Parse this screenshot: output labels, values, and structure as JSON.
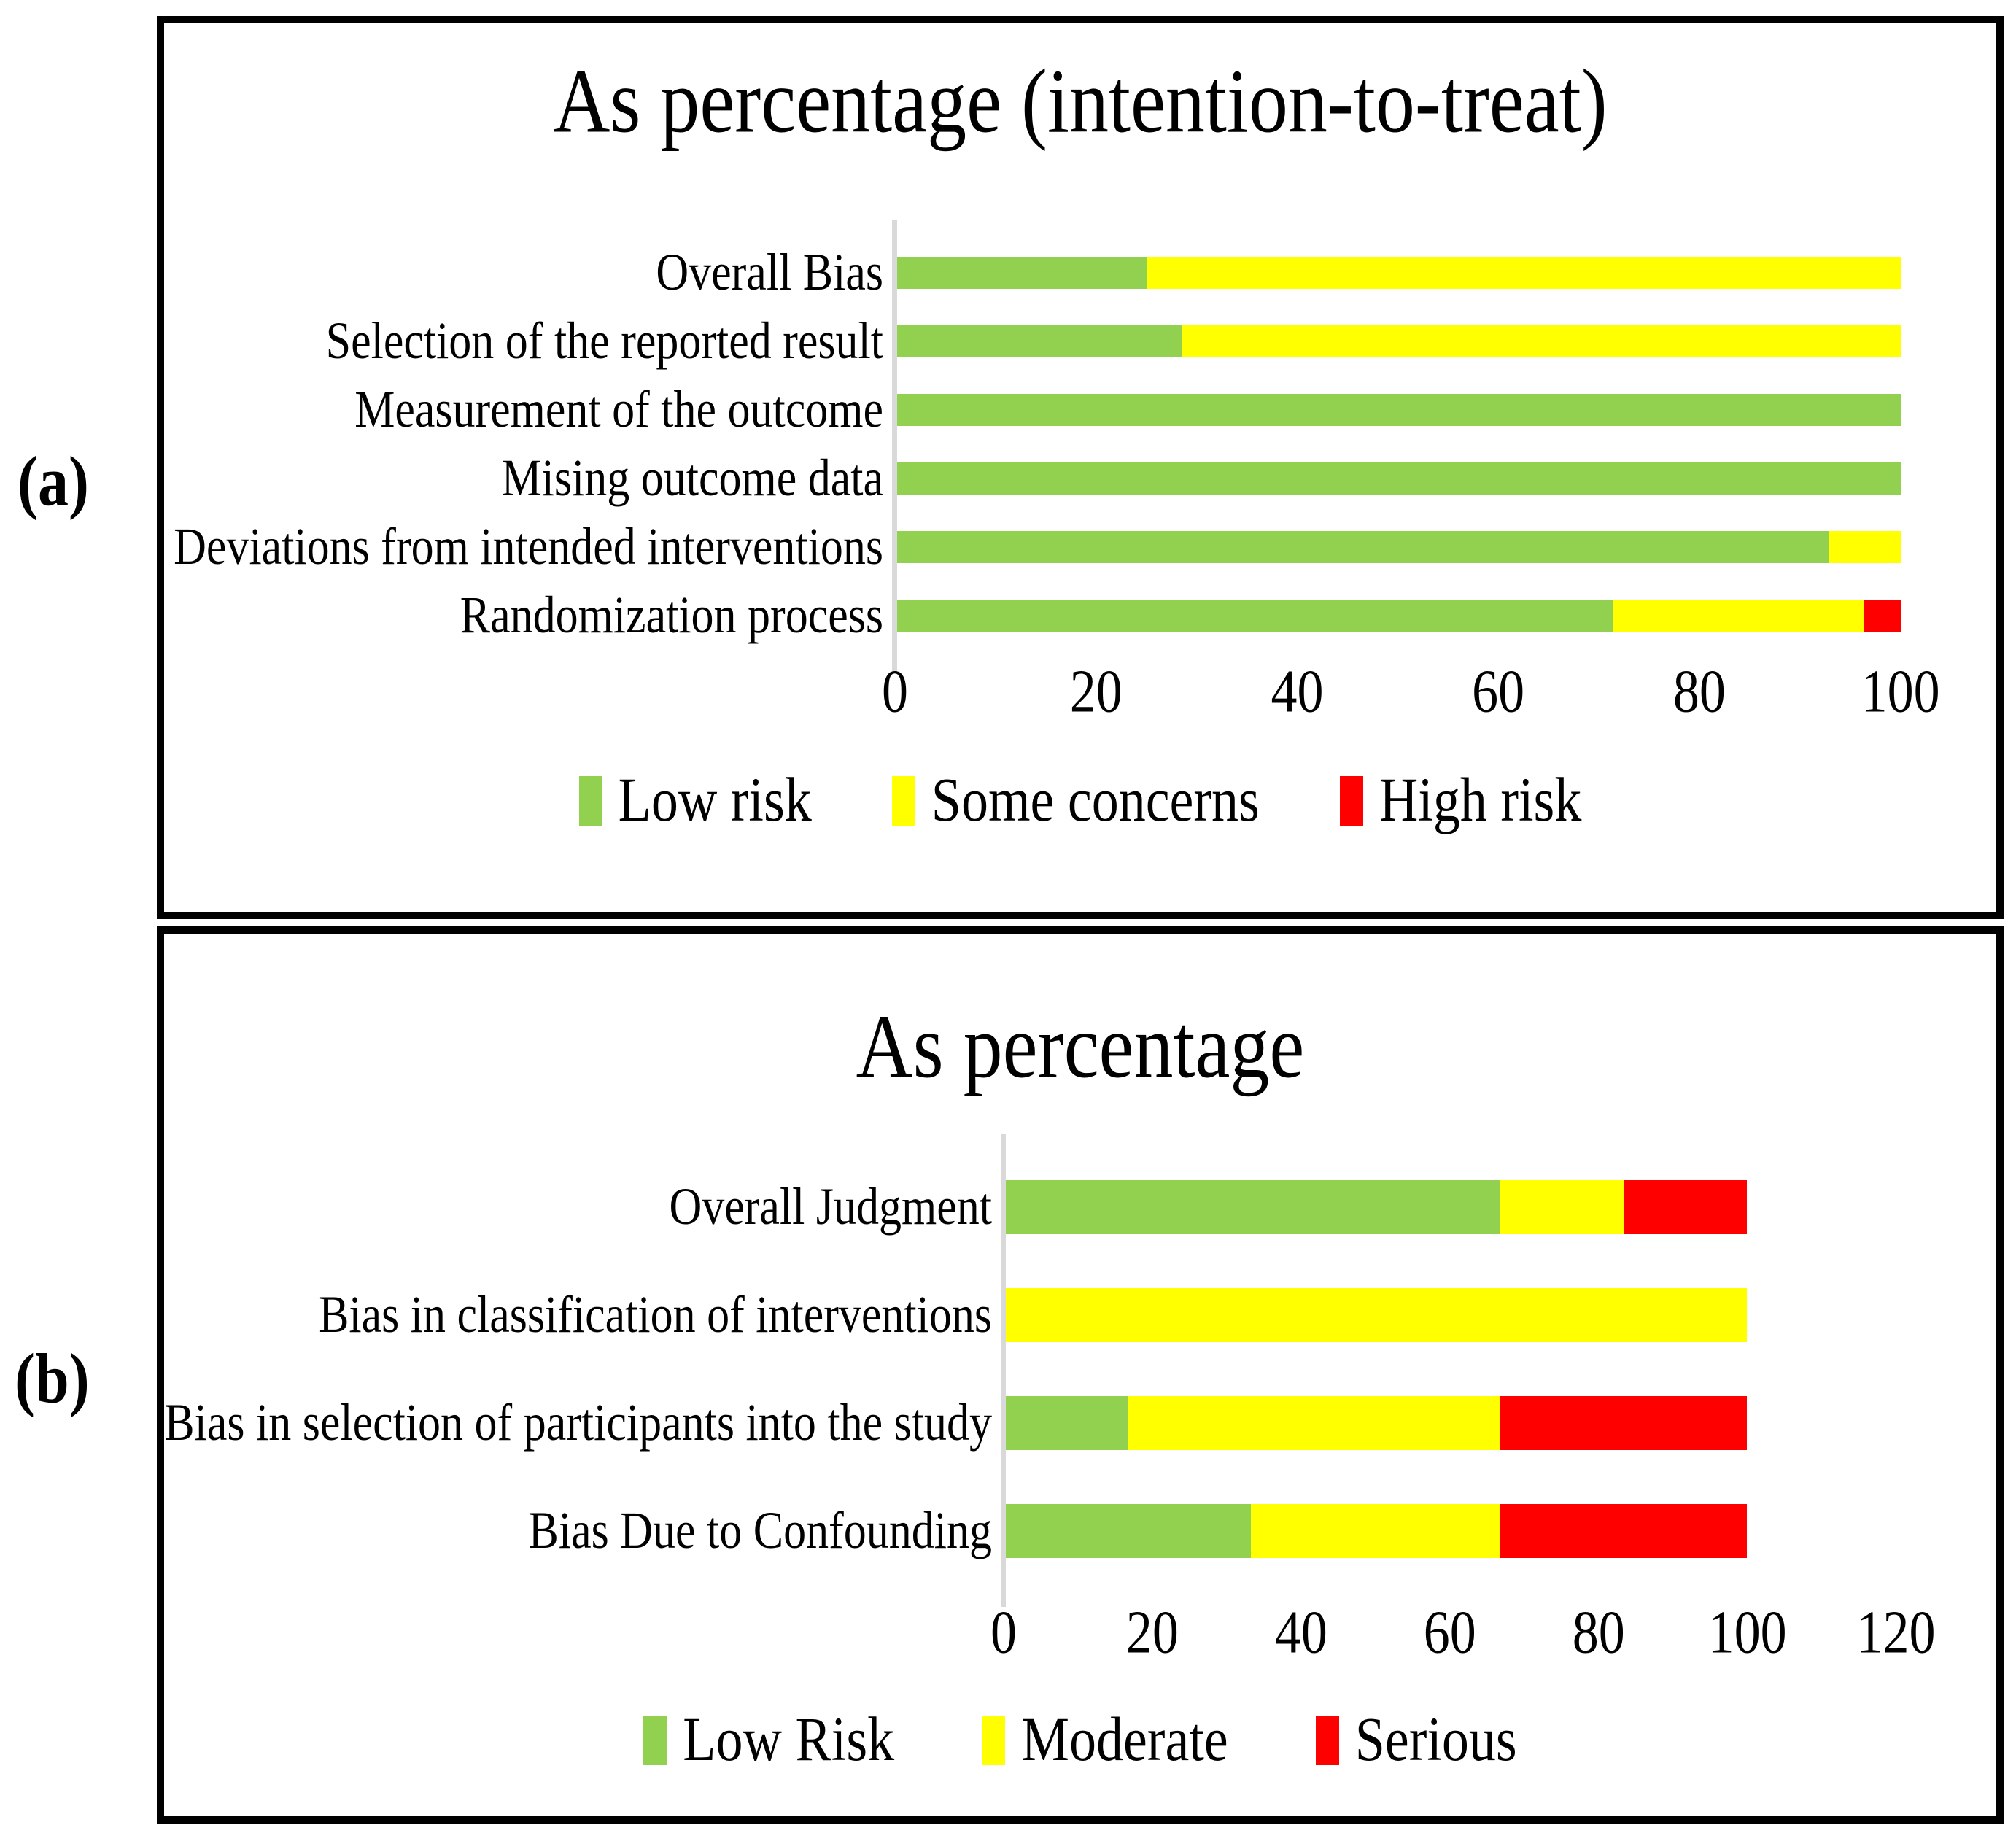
{
  "figure": {
    "markers": [
      "(a)",
      "(b)"
    ],
    "background": "#FFFFFF",
    "border_color": "#000000",
    "axis_color": "#D9D9D9"
  },
  "chart_data": [
    {
      "type": "bar",
      "orientation": "horizontal",
      "stacked": true,
      "title": "As percentage (intention-to-treat)",
      "categories": [
        "Overall Bias",
        "Selection of the reported result",
        "Measurement of the outcome",
        "Mising outcome data",
        "Deviations from intended interventions",
        "Randomization process"
      ],
      "series": [
        {
          "name": "Low risk",
          "values": [
            25.0,
            28.6,
            100,
            100,
            92.9,
            71.4
          ]
        },
        {
          "name": "Some concerns",
          "values": [
            75.0,
            71.4,
            0,
            0,
            7.1,
            25.0
          ]
        },
        {
          "name": "High risk",
          "values": [
            0,
            0,
            0,
            0,
            0,
            3.6
          ]
        }
      ],
      "colors": [
        "#92D050",
        "#FFFF00",
        "#FF0000"
      ],
      "xlabel": "",
      "ylabel": "",
      "xlim": [
        0,
        100
      ],
      "x_tick_labels": [
        "0",
        "20",
        "40",
        "60",
        "80",
        "100"
      ],
      "grid": false,
      "legend_position": "bottom"
    },
    {
      "type": "bar",
      "orientation": "horizontal",
      "stacked": true,
      "title": "As percentage",
      "categories": [
        "Overall Judgment",
        "Bias in classification of interventions",
        "Bias in selection of participants into the study",
        "Bias Due to Confounding"
      ],
      "series": [
        {
          "name": "Low Risk",
          "values": [
            66.7,
            0,
            16.7,
            33.3
          ]
        },
        {
          "name": "Moderate",
          "values": [
            16.7,
            100,
            50.0,
            33.4
          ]
        },
        {
          "name": "Serious",
          "values": [
            16.6,
            0,
            33.3,
            33.3
          ]
        }
      ],
      "colors": [
        "#92D050",
        "#FFFF00",
        "#FF0000"
      ],
      "xlabel": "",
      "ylabel": "",
      "xlim": [
        0,
        120
      ],
      "x_tick_labels": [
        "0",
        "20",
        "40",
        "60",
        "80",
        "100",
        "120"
      ],
      "grid": false,
      "legend_position": "bottom"
    }
  ]
}
